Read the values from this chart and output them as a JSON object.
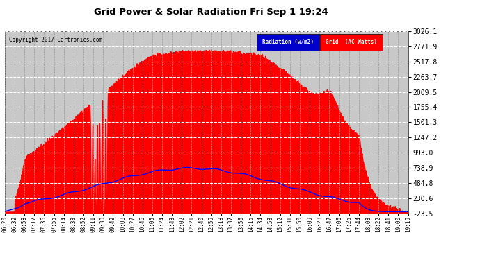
{
  "title": "Grid Power & Solar Radiation Fri Sep 1 19:24",
  "copyright": "Copyright 2017 Cartronics.com",
  "background_color": "#ffffff",
  "plot_bg_color": "#c8c8c8",
  "yticks": [
    3026.1,
    2771.9,
    2517.8,
    2263.7,
    2009.5,
    1755.4,
    1501.3,
    1247.2,
    993.0,
    738.9,
    484.8,
    230.6,
    -23.5
  ],
  "ymin": -23.5,
  "ymax": 3026.1,
  "grid_color": "#999999",
  "radiation_color": "#0000ff",
  "grid_ac_color": "#ff0000",
  "legend_items": [
    {
      "label": "Radiation (w/m2)",
      "bg": "#0000cd",
      "fg": "#ffffff"
    },
    {
      "label": "Grid  (AC Watts)",
      "bg": "#ff0000",
      "fg": "#ffffff"
    }
  ],
  "xtick_labels": [
    "06:20",
    "06:39",
    "06:58",
    "07:17",
    "07:36",
    "07:55",
    "08:14",
    "08:33",
    "08:52",
    "09:11",
    "09:30",
    "09:49",
    "10:08",
    "10:27",
    "10:46",
    "11:05",
    "11:24",
    "11:43",
    "12:02",
    "12:21",
    "12:40",
    "12:59",
    "13:18",
    "13:37",
    "13:56",
    "14:15",
    "14:34",
    "14:53",
    "15:12",
    "15:31",
    "15:50",
    "16:09",
    "16:28",
    "16:47",
    "17:06",
    "17:25",
    "17:44",
    "18:03",
    "18:22",
    "18:41",
    "19:00",
    "19:19"
  ]
}
